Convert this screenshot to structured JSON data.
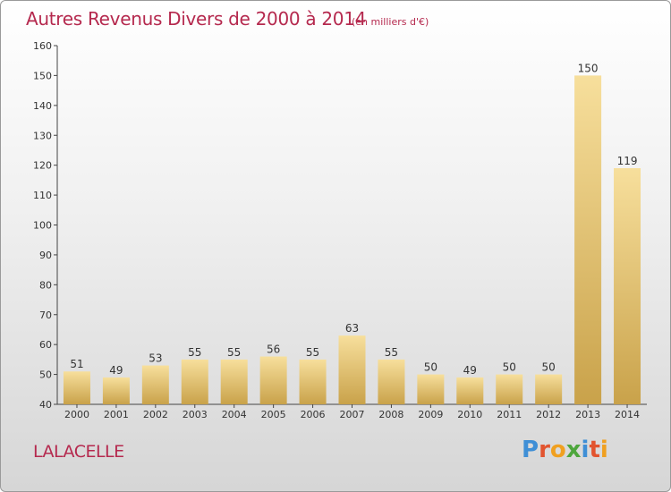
{
  "title": "Autres Revenus Divers de 2000 à 2014",
  "subtitle": "(en milliers d'€)",
  "place": "LALACELLE",
  "logo": {
    "text": "Proxiti",
    "letters": [
      {
        "ch": "P",
        "color": "#3f8fd6"
      },
      {
        "ch": "r",
        "color": "#e2542f"
      },
      {
        "ch": "o",
        "color": "#f0a020"
      },
      {
        "ch": "x",
        "color": "#4da63c"
      },
      {
        "ch": "i",
        "color": "#3f8fd6"
      },
      {
        "ch": "t",
        "color": "#e2542f"
      },
      {
        "ch": "i",
        "color": "#f0a020"
      }
    ]
  },
  "colors": {
    "accent": "#b5294e",
    "bar_light": "#f7df9c",
    "bar_dark": "#c9a24a",
    "axis": "#444444"
  },
  "chart_data": {
    "type": "bar",
    "categories": [
      "2000",
      "2001",
      "2002",
      "2003",
      "2004",
      "2005",
      "2006",
      "2007",
      "2008",
      "2009",
      "2010",
      "2011",
      "2012",
      "2013",
      "2014"
    ],
    "values": [
      51,
      49,
      53,
      55,
      55,
      56,
      55,
      63,
      55,
      50,
      49,
      50,
      50,
      150,
      119
    ],
    "ylim": [
      40,
      160
    ],
    "yticks": [
      40,
      50,
      60,
      70,
      80,
      90,
      100,
      110,
      120,
      130,
      140,
      150,
      160
    ],
    "data_labels": true,
    "grid": false
  }
}
